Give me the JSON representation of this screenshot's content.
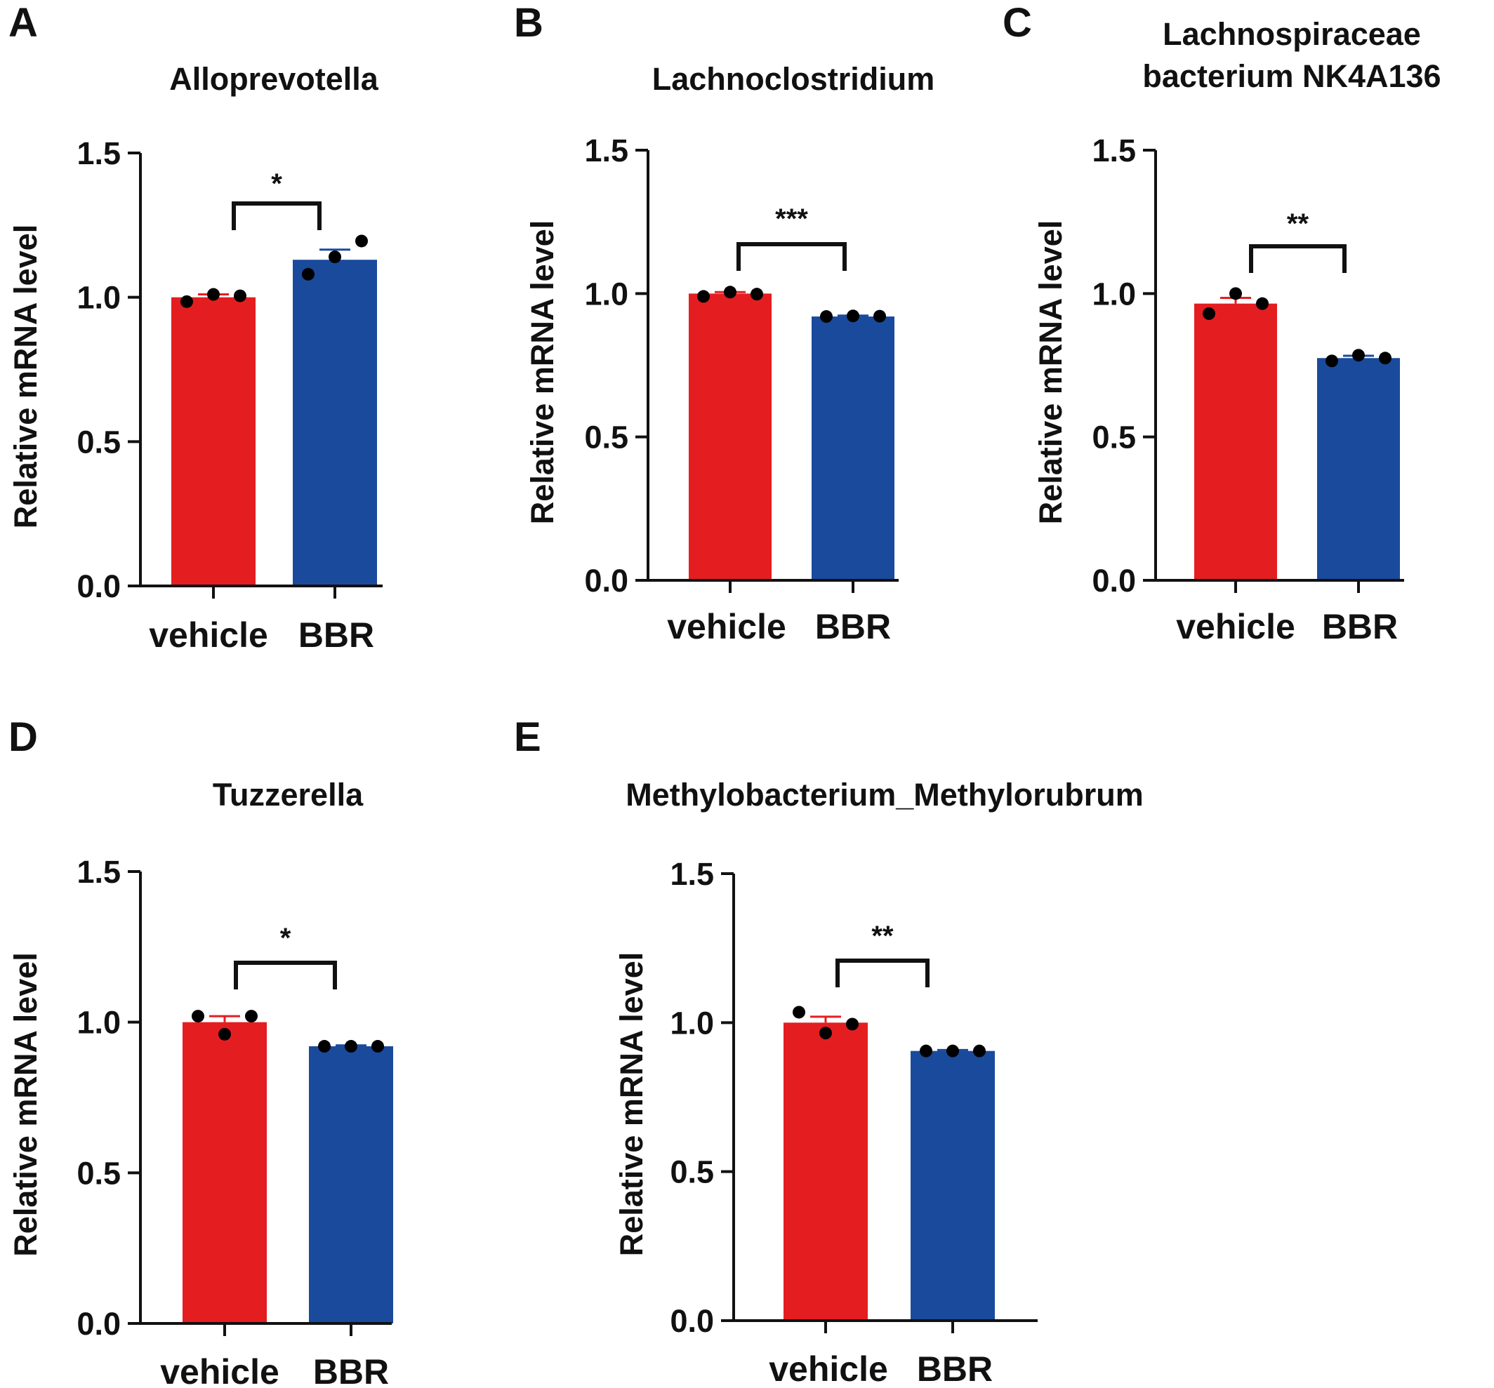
{
  "colors": {
    "vehicle": "#e41e20",
    "BBR": "#1a4a9c",
    "axis": "#111111",
    "point": "#000000"
  },
  "chart_data": [
    {
      "panel": "A",
      "type": "bar",
      "title": "Alloprevotella",
      "categories": [
        "vehicle",
        "BBR"
      ],
      "values": [
        1.0,
        1.13
      ],
      "errors": [
        0.01,
        0.035
      ],
      "points": [
        [
          0.985,
          1.01,
          1.005
        ],
        [
          1.08,
          1.14,
          1.195
        ]
      ],
      "ylabel": "Relative mRNA level",
      "ylim": [
        0,
        1.5
      ],
      "yticks": [
        "0.0",
        "0.5",
        "1.0",
        "1.5"
      ],
      "significance": "*"
    },
    {
      "panel": "B",
      "type": "bar",
      "title": "Lachnoclostridium",
      "categories": [
        "vehicle",
        "BBR"
      ],
      "values": [
        1.0,
        0.92
      ],
      "errors": [
        0.005,
        0.003
      ],
      "points": [
        [
          0.99,
          1.005,
          0.998
        ],
        [
          0.92,
          0.922,
          0.921
        ]
      ],
      "ylabel": "Relative mRNA level",
      "ylim": [
        0,
        1.5
      ],
      "yticks": [
        "0.0",
        "0.5",
        "1.0",
        "1.5"
      ],
      "significance": "***"
    },
    {
      "panel": "C",
      "type": "bar",
      "title_lines": [
        "Lachnospiraceae",
        "bacterium NK4A136"
      ],
      "categories": [
        "vehicle",
        "BBR"
      ],
      "values": [
        0.965,
        0.775
      ],
      "errors": [
        0.02,
        0.008
      ],
      "points": [
        [
          0.93,
          1.0,
          0.965
        ],
        [
          0.765,
          0.785,
          0.775
        ]
      ],
      "ylabel": "Relative mRNA level",
      "ylim": [
        0,
        1.5
      ],
      "yticks": [
        "0.0",
        "0.5",
        "1.0",
        "1.5"
      ],
      "significance": "**"
    },
    {
      "panel": "D",
      "type": "bar",
      "title": "Tuzzerella",
      "categories": [
        "vehicle",
        "BBR"
      ],
      "values": [
        1.0,
        0.92
      ],
      "errors": [
        0.02,
        0.003
      ],
      "points": [
        [
          1.02,
          0.96,
          1.02
        ],
        [
          0.92,
          0.92,
          0.92
        ]
      ],
      "ylabel": "Relative mRNA level",
      "ylim": [
        0,
        1.5
      ],
      "yticks": [
        "0.0",
        "0.5",
        "1.0",
        "1.5"
      ],
      "significance": "*"
    },
    {
      "panel": "E",
      "type": "bar",
      "title": "Methylobacterium_Methylorubrum",
      "categories": [
        "vehicle",
        "BBR"
      ],
      "values": [
        1.0,
        0.905
      ],
      "errors": [
        0.02,
        0.003
      ],
      "points": [
        [
          1.035,
          0.965,
          0.995
        ],
        [
          0.905,
          0.905,
          0.905
        ]
      ],
      "ylabel": "Relative mRNA level",
      "ylim": [
        0,
        1.5
      ],
      "yticks": [
        "0.0",
        "0.5",
        "1.0",
        "1.5"
      ],
      "significance": "**"
    }
  ]
}
